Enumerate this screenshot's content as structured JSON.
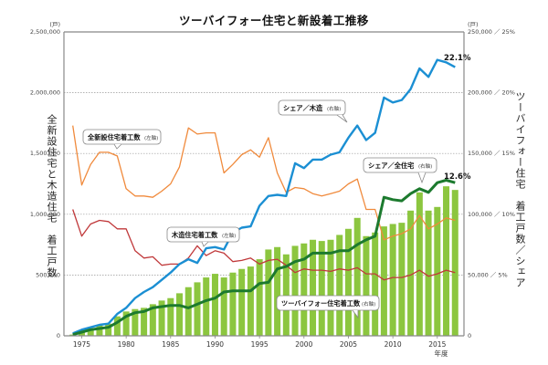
{
  "chart_data": {
    "type": "bar+line",
    "title": "ツーバイフォー住宅と新設着工推移",
    "left_axis": {
      "label": "全新設住宅と木造住宅　着工戸数",
      "unit": "(戸)",
      "range": [
        0,
        2500000
      ],
      "ticks": [
        "0",
        "500,000",
        "1,000,000",
        "1,500,000",
        "2,000,000",
        "2,500,000"
      ],
      "tick_values": [
        0,
        500000,
        1000000,
        1500000,
        2000000,
        2500000
      ]
    },
    "right_axis": {
      "label": "ツーバイフォー住宅　着工戸数／シェア",
      "unit": "(戸)",
      "range": [
        0,
        250000
      ],
      "share_range": [
        0,
        25
      ],
      "ticks": [
        "0",
        "50,000 ／ 5%",
        "100,000 ／ 10%",
        "150,000 ／ 15%",
        "200,000 ／ 20%",
        "250,000 ／ 25%"
      ],
      "tick_values": [
        0,
        50000,
        100000,
        150000,
        200000,
        250000
      ]
    },
    "x_axis": {
      "label": "年度",
      "range": [
        1973,
        2018
      ],
      "ticks": [
        "1975",
        "1980",
        "1985",
        "1990",
        "1995",
        "2000",
        "2005",
        "2010",
        "2015"
      ],
      "tick_values": [
        1975,
        1980,
        1985,
        1990,
        1995,
        2000,
        2005,
        2010,
        2015
      ]
    },
    "grid": "horizontal dotted",
    "years": [
      1974,
      1975,
      1976,
      1977,
      1978,
      1979,
      1980,
      1981,
      1982,
      1983,
      1984,
      1985,
      1986,
      1987,
      1988,
      1989,
      1990,
      1991,
      1992,
      1993,
      1994,
      1995,
      1996,
      1997,
      1998,
      1999,
      2000,
      2001,
      2002,
      2003,
      2004,
      2005,
      2006,
      2007,
      2008,
      2009,
      2010,
      2011,
      2012,
      2013,
      2014,
      2015,
      2016,
      2017
    ],
    "series": [
      {
        "name": "全新設住宅着工数",
        "axis": "left",
        "type": "line",
        "color": "#f08a3c",
        "values": [
          1730000,
          1240000,
          1410000,
          1510000,
          1510000,
          1480000,
          1210000,
          1150000,
          1150000,
          1140000,
          1190000,
          1250000,
          1390000,
          1710000,
          1660000,
          1670000,
          1670000,
          1340000,
          1410000,
          1490000,
          1530000,
          1470000,
          1630000,
          1340000,
          1180000,
          1220000,
          1210000,
          1170000,
          1150000,
          1170000,
          1190000,
          1250000,
          1290000,
          1040000,
          1040000,
          790000,
          820000,
          840000,
          880000,
          990000,
          880000,
          920000,
          970000,
          950000
        ]
      },
      {
        "name": "木造住宅着工数",
        "axis": "left",
        "type": "line",
        "color": "#c0383a",
        "values": [
          1040000,
          820000,
          920000,
          950000,
          940000,
          880000,
          880000,
          700000,
          640000,
          650000,
          580000,
          590000,
          590000,
          640000,
          740000,
          660000,
          700000,
          680000,
          610000,
          620000,
          640000,
          590000,
          620000,
          630000,
          580000,
          520000,
          550000,
          540000,
          540000,
          530000,
          550000,
          540000,
          560000,
          510000,
          510000,
          460000,
          480000,
          480000,
          500000,
          540000,
          490000,
          510000,
          540000,
          520000
        ]
      },
      {
        "name": "ツーバイフォー住宅着工数",
        "axis": "right",
        "type": "bar",
        "color": "#8cc63f",
        "values": [
          1000,
          3000,
          6000,
          9000,
          10000,
          16000,
          20000,
          22000,
          23000,
          26000,
          29000,
          31000,
          35000,
          40000,
          44000,
          48000,
          51000,
          48000,
          52000,
          55000,
          57000,
          63000,
          71000,
          73000,
          67000,
          74000,
          76000,
          79000,
          78000,
          79000,
          83000,
          88000,
          97000,
          82000,
          85000,
          90000,
          92000,
          93000,
          103000,
          118000,
          103000,
          106000,
          123000,
          120000
        ]
      },
      {
        "name": "シェア／木造",
        "axis": "right-share",
        "type": "line",
        "color": "#1b8fd3",
        "values": [
          0.2,
          0.5,
          0.7,
          0.9,
          1.0,
          1.8,
          2.3,
          3.1,
          3.6,
          4.0,
          4.6,
          5.2,
          5.9,
          6.3,
          6.0,
          7.2,
          7.3,
          7.1,
          8.5,
          8.9,
          9.0,
          10.7,
          11.5,
          11.6,
          11.5,
          14.2,
          13.8,
          14.5,
          14.5,
          14.9,
          15.1,
          16.3,
          17.3,
          16.1,
          16.7,
          19.6,
          19.2,
          19.4,
          20.3,
          22.0,
          21.3,
          22.7,
          22.5,
          22.1
        ],
        "end_label": "22.1%"
      },
      {
        "name": "シェア／全住宅",
        "axis": "right-share",
        "type": "line",
        "color": "#1c7a2e",
        "values": [
          0.1,
          0.3,
          0.5,
          0.6,
          0.7,
          1.1,
          1.6,
          1.9,
          2.0,
          2.3,
          2.4,
          2.5,
          2.5,
          2.3,
          2.6,
          2.9,
          3.1,
          3.6,
          3.7,
          3.7,
          3.7,
          4.3,
          4.4,
          5.5,
          5.7,
          6.1,
          6.3,
          6.8,
          6.8,
          6.8,
          7.0,
          7.0,
          7.5,
          7.9,
          8.2,
          11.4,
          11.2,
          11.1,
          11.7,
          12.1,
          11.8,
          12.6,
          12.8,
          12.6
        ],
        "end_label": "12.6%"
      }
    ],
    "callouts": [
      {
        "text": "全新設住宅着工数",
        "note": "(左軸)"
      },
      {
        "text": "木造住宅着工数",
        "note": "(左軸)"
      },
      {
        "text": "シェア／木造",
        "note": "(右軸)"
      },
      {
        "text": "シェア／全住宅",
        "note": "(右軸)"
      },
      {
        "text": "ツーバイフォー住宅着工数",
        "note": "(右軸)"
      }
    ]
  }
}
